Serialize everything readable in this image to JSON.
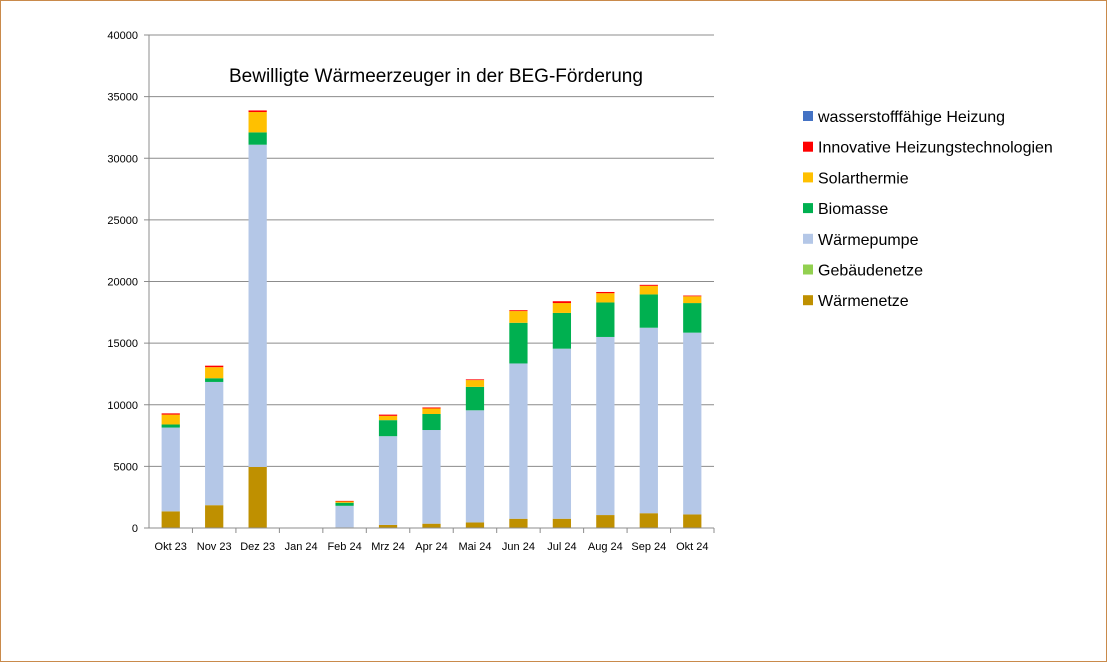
{
  "chart_data": {
    "type": "bar",
    "stacked": true,
    "title": "Bewilligte Wärmeerzeuger  in der BEG-Förderung",
    "xlabel": "",
    "ylabel": "",
    "ylim": [
      0,
      40000
    ],
    "yticks": [
      0,
      5000,
      10000,
      15000,
      20000,
      25000,
      30000,
      35000,
      40000
    ],
    "grid": true,
    "legend_position": "right",
    "categories": [
      "Okt 23",
      "Nov 23",
      "Dez 23",
      "Jan 24",
      "Feb 24",
      "Mrz 24",
      "Apr 24",
      "Mai 24",
      "Jun 24",
      "Jul 24",
      "Aug 24",
      "Sep 24",
      "Okt 24"
    ],
    "series": [
      {
        "name": "Wärmenetze",
        "color": "#bf9000",
        "values": [
          1350,
          1850,
          4950,
          0,
          50,
          250,
          350,
          450,
          750,
          750,
          1050,
          1200,
          1100
        ]
      },
      {
        "name": "Gebäudenetze",
        "color": "#92d050",
        "values": [
          0,
          0,
          0,
          0,
          0,
          0,
          0,
          0,
          0,
          0,
          0,
          0,
          0
        ]
      },
      {
        "name": "Wärmepumpe",
        "color": "#b4c7e7",
        "values": [
          6800,
          10000,
          26150,
          0,
          1750,
          7200,
          7600,
          9100,
          12600,
          13800,
          14450,
          15050,
          14750
        ]
      },
      {
        "name": "Biomasse",
        "color": "#00b050",
        "values": [
          250,
          300,
          1000,
          0,
          250,
          1300,
          1300,
          1900,
          3300,
          2900,
          2800,
          2700,
          2400
        ]
      },
      {
        "name": "Solarthermie",
        "color": "#ffc000",
        "values": [
          800,
          900,
          1650,
          0,
          100,
          350,
          450,
          550,
          950,
          800,
          750,
          700,
          550
        ]
      },
      {
        "name": "Innovative Heizungstechnologien",
        "color": "#ff0000",
        "values": [
          100,
          120,
          130,
          0,
          50,
          100,
          80,
          60,
          70,
          150,
          100,
          80,
          60
        ]
      },
      {
        "name": "wasserstofffähige Heizung",
        "color": "#4472c4",
        "values": [
          0,
          0,
          0,
          0,
          0,
          0,
          0,
          0,
          0,
          0,
          0,
          0,
          0
        ]
      }
    ]
  }
}
